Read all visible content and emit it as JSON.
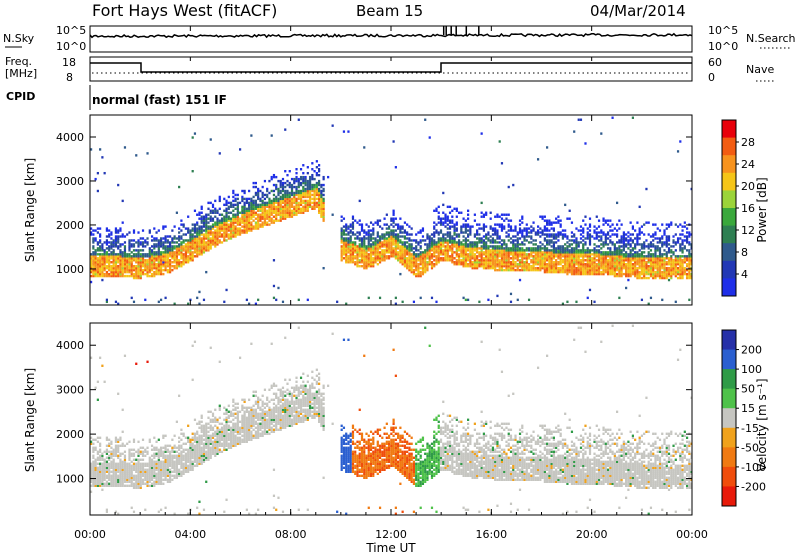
{
  "header": {
    "title": "Fort Hays West (fitACF)",
    "beam": "Beam 15",
    "date": "04/Mar/2014"
  },
  "top_panels": {
    "nsky_label": "N.Sky",
    "nsearch_label": "N.Search",
    "nsky_ticks": [
      "10^5",
      "10^0"
    ],
    "nsearch_ticks": [
      "10^5",
      "10^0"
    ],
    "freq_label": "Freq.",
    "freq_unit": "[MHz]",
    "freq_ticks": [
      "18",
      "8"
    ],
    "nave_label": "Nave",
    "nave_ticks": [
      "60",
      "0"
    ],
    "cpid_label": "CPID",
    "cpid_text": "normal (fast) 151 IF"
  },
  "chart_data": [
    {
      "type": "heatmap",
      "name": "power",
      "ylabel": "Slant Range [km]",
      "xlabel": "",
      "xlim": [
        0,
        24
      ],
      "ylim": [
        180,
        4500
      ],
      "yticks": [
        "4000",
        "3000",
        "2000",
        "1000"
      ],
      "colorbar": {
        "label": "Power [dB]",
        "ticks": [
          "28",
          "24",
          "20",
          "16",
          "12",
          "8",
          "4"
        ],
        "colors": [
          "#e8000b",
          "#f25c12",
          "#f7931e",
          "#f5c518",
          "#9bd43a",
          "#3aa83c",
          "#2e7f52",
          "#2f5a8c",
          "#2238b5",
          "#1f2fe8"
        ]
      },
      "main_band": {
        "hours": [
          0,
          1,
          2,
          3,
          4,
          5,
          6,
          7,
          8,
          9,
          10,
          11,
          12,
          13,
          14,
          15,
          16,
          17,
          18,
          19,
          20,
          21,
          22,
          23,
          24
        ],
        "range_km": [
          1150,
          1150,
          1100,
          1200,
          1500,
          1850,
          2100,
          2300,
          2500,
          2700,
          1500,
          1300,
          1600,
          1100,
          1500,
          1350,
          1300,
          1250,
          1250,
          1200,
          1200,
          1150,
          1100,
          1100,
          1100
        ]
      }
    },
    {
      "type": "heatmap",
      "name": "velocity",
      "ylabel": "Slant Range [km]",
      "xlabel": "Time UT",
      "xlim": [
        0,
        24
      ],
      "ylim": [
        180,
        4500
      ],
      "yticks": [
        "4000",
        "3000",
        "2000",
        "1000"
      ],
      "xticks": [
        "00:00",
        "04:00",
        "08:00",
        "12:00",
        "16:00",
        "20:00",
        "00:00"
      ],
      "colorbar": {
        "label": "Velocity [m s⁻¹]",
        "ticks": [
          "200",
          "100",
          "50",
          "15",
          "-15",
          "-50",
          "-100",
          "-200"
        ],
        "colors": [
          "#2630a8",
          "#2a5fd0",
          "#2f9b47",
          "#4fc24a",
          "#c6c6c1",
          "#f0a21c",
          "#f07a12",
          "#f04d0c",
          "#e81a0a"
        ]
      }
    }
  ]
}
